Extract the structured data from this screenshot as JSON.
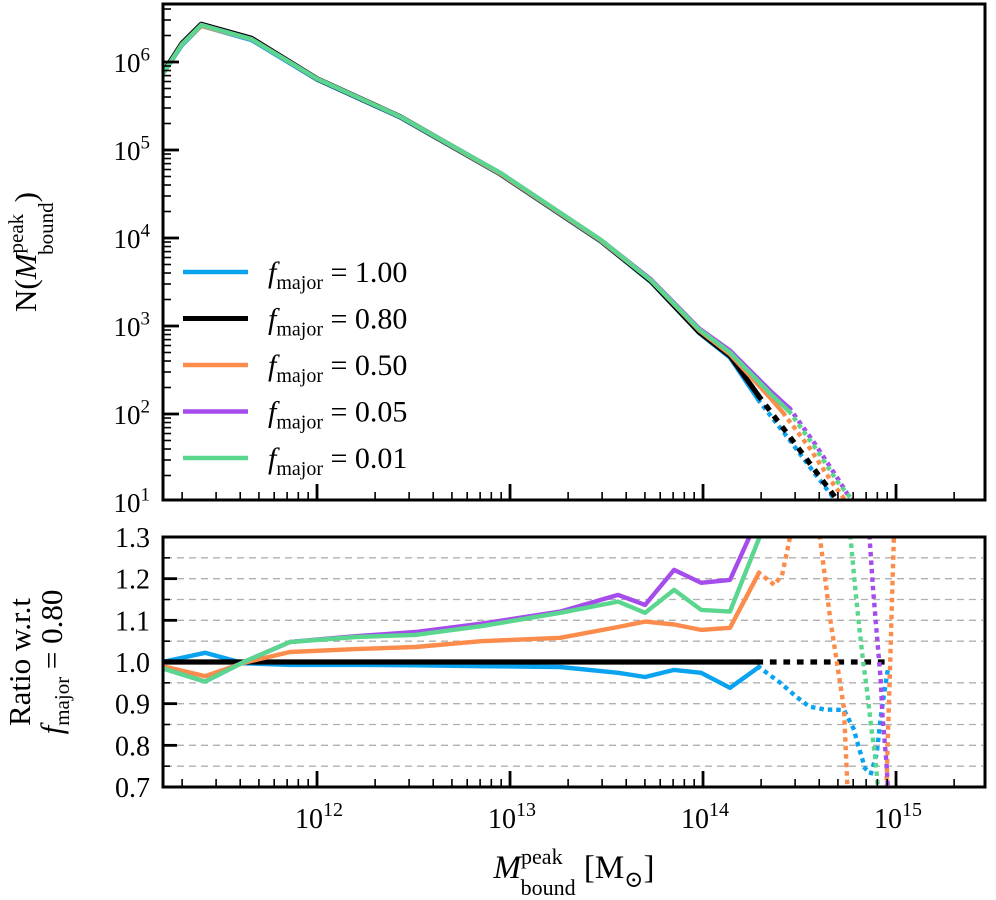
{
  "colors": {
    "blue": "#0aa3f0",
    "black": "#000000",
    "orange": "#fb8c4c",
    "purple": "#a54cec",
    "green": "#5bd68f",
    "grid": "#b0b0b0"
  },
  "labels": {
    "top_y": {
      "pre": "N(",
      "var": "M",
      "sup": "peak",
      "sub": "bound",
      "post": ")"
    },
    "bottom_y_line1": "Ratio w.r.t",
    "bottom_y_line2": {
      "var": "f",
      "sub": "major",
      "rest": " = 0.80"
    },
    "x": {
      "var": "M",
      "sup": "peak",
      "sub": "bound",
      "unit_pre": " [M",
      "unit_sub": "⊙",
      "unit_post": "]"
    }
  },
  "legend": {
    "items": [
      {
        "id": "fmajor-1.00",
        "var": "f",
        "sub": "major",
        "rest": " = 1.00",
        "color": "#0aa3f0"
      },
      {
        "id": "fmajor-0.80",
        "var": "f",
        "sub": "major",
        "rest": " = 0.80",
        "color": "#000000"
      },
      {
        "id": "fmajor-0.50",
        "var": "f",
        "sub": "major",
        "rest": " = 0.50",
        "color": "#fb8c4c"
      },
      {
        "id": "fmajor-0.05",
        "var": "f",
        "sub": "major",
        "rest": " = 0.05",
        "color": "#a54cec"
      },
      {
        "id": "fmajor-0.01",
        "var": "f",
        "sub": "major",
        "rest": " = 0.01",
        "color": "#5bd68f"
      }
    ]
  },
  "chart_data": [
    {
      "type": "line",
      "panel": "top",
      "title": "",
      "xlabel": "M_bound^peak [Msun]",
      "ylabel": "N(M_bound^peak)",
      "xscale": "log",
      "yscale": "log",
      "xlim_log10": [
        11.202,
        15.461
      ],
      "ylim_log10": [
        1.02,
        6.66
      ],
      "xticks_log10": [
        12,
        13,
        14,
        15
      ],
      "yticks_log10": [
        1,
        2,
        3,
        4,
        5,
        6
      ],
      "grid": false,
      "legend_position": "center-left-inside",
      "note": "All five halo mass functions nearly overlap; lines become dotted above ~2e14 Msun. Points are [log10(M/Msun), log10(N)].",
      "series": [
        {
          "id": "fmajor-1.00",
          "name": "f_major = 1.00",
          "color": "#0aa3f0",
          "solid": [
            [
              11.2,
              5.86
            ],
            [
              11.3,
              6.19
            ],
            [
              11.4,
              6.41
            ],
            [
              11.66,
              6.25
            ],
            [
              12.0,
              5.8
            ],
            [
              12.43,
              5.37
            ],
            [
              12.95,
              4.72
            ],
            [
              13.47,
              3.96
            ],
            [
              13.73,
              3.5
            ],
            [
              13.98,
              2.92
            ],
            [
              14.14,
              2.64
            ],
            [
              14.29,
              2.15
            ]
          ],
          "dotted": [
            [
              [
                14.29,
                2.15
              ],
              [
                14.45,
                1.7
              ],
              [
                14.58,
                1.32
              ],
              [
                14.7,
                0.98
              ]
            ]
          ]
        },
        {
          "id": "fmajor-0.80",
          "name": "f_major = 0.80",
          "color": "#000000",
          "solid": [
            [
              11.2,
              5.87
            ],
            [
              11.3,
              6.21
            ],
            [
              11.4,
              6.43
            ],
            [
              11.66,
              6.27
            ],
            [
              12.0,
              5.81
            ],
            [
              12.43,
              5.38
            ],
            [
              12.95,
              4.73
            ],
            [
              13.47,
              3.97
            ],
            [
              13.73,
              3.51
            ],
            [
              13.98,
              2.93
            ],
            [
              14.14,
              2.66
            ],
            [
              14.29,
              2.2
            ]
          ],
          "dotted": [
            [
              [
                14.29,
                2.2
              ],
              [
                14.45,
                1.74
              ],
              [
                14.58,
                1.36
              ],
              [
                14.71,
                0.98
              ]
            ]
          ]
        },
        {
          "id": "fmajor-0.50",
          "name": "f_major = 0.50",
          "color": "#fb8c4c",
          "solid": [
            [
              11.2,
              5.86
            ],
            [
              11.3,
              6.2
            ],
            [
              11.4,
              6.41
            ],
            [
              11.66,
              6.26
            ],
            [
              12.0,
              5.81
            ],
            [
              12.43,
              5.38
            ],
            [
              12.95,
              4.73
            ],
            [
              13.47,
              3.97
            ],
            [
              13.73,
              3.52
            ],
            [
              13.98,
              2.95
            ],
            [
              14.14,
              2.68
            ],
            [
              14.35,
              2.18
            ],
            [
              14.42,
              2.0
            ]
          ],
          "dotted": [
            [
              [
                14.42,
                2.0
              ],
              [
                14.55,
                1.62
              ],
              [
                14.66,
                1.25
              ],
              [
                14.75,
                0.98
              ]
            ]
          ]
        },
        {
          "id": "fmajor-0.05",
          "name": "f_major = 0.05",
          "color": "#a54cec",
          "solid": [
            [
              11.2,
              5.86
            ],
            [
              11.3,
              6.2
            ],
            [
              11.4,
              6.42
            ],
            [
              11.66,
              6.26
            ],
            [
              12.0,
              5.81
            ],
            [
              12.43,
              5.38
            ],
            [
              12.95,
              4.74
            ],
            [
              13.47,
              3.98
            ],
            [
              13.73,
              3.53
            ],
            [
              13.98,
              2.97
            ],
            [
              14.14,
              2.72
            ],
            [
              14.35,
              2.26
            ],
            [
              14.45,
              2.06
            ]
          ],
          "dotted": [
            [
              [
                14.45,
                2.06
              ],
              [
                14.58,
                1.66
              ],
              [
                14.7,
                1.26
              ],
              [
                14.78,
                0.98
              ]
            ]
          ]
        },
        {
          "id": "fmajor-0.01",
          "name": "f_major = 0.01",
          "color": "#5bd68f",
          "solid": [
            [
              11.2,
              5.86
            ],
            [
              11.3,
              6.2
            ],
            [
              11.4,
              6.42
            ],
            [
              11.66,
              6.26
            ],
            [
              12.0,
              5.81
            ],
            [
              12.43,
              5.38
            ],
            [
              12.95,
              4.74
            ],
            [
              13.47,
              3.98
            ],
            [
              13.73,
              3.52
            ],
            [
              13.98,
              2.96
            ],
            [
              14.14,
              2.7
            ],
            [
              14.35,
              2.23
            ],
            [
              14.45,
              2.02
            ]
          ],
          "dotted": [
            [
              [
                14.45,
                2.02
              ],
              [
                14.58,
                1.62
              ],
              [
                14.7,
                1.22
              ],
              [
                14.79,
                0.98
              ]
            ]
          ]
        }
      ]
    },
    {
      "type": "line",
      "panel": "bottom",
      "title": "",
      "xlabel": "M_bound^peak [Msun]",
      "ylabel": "Ratio w.r.t f_major = 0.80",
      "xscale": "log",
      "yscale": "linear",
      "xlim_log10": [
        11.202,
        15.461
      ],
      "ylim": [
        0.7,
        1.3
      ],
      "xticks_log10": [
        12,
        13,
        14,
        15
      ],
      "yticks": [
        0.7,
        0.8,
        0.9,
        1.0,
        1.1,
        1.2,
        1.3
      ],
      "grid": true,
      "grid_y": [
        0.75,
        0.8,
        0.85,
        0.9,
        0.95,
        1.05,
        1.1,
        1.15,
        1.2,
        1.25
      ],
      "note": "Ratio of each mass function to the f_major = 0.80 case. Points are [log10(M/Msun), ratio].",
      "series": [
        {
          "id": "fmajor-1.00",
          "name": "f_major = 1.00",
          "color": "#0aa3f0",
          "solid": [
            [
              11.2,
              1.0
            ],
            [
              11.42,
              1.022
            ],
            [
              11.62,
              0.997
            ],
            [
              11.86,
              0.993
            ],
            [
              12.2,
              0.993
            ],
            [
              12.51,
              0.992
            ],
            [
              12.85,
              0.99
            ],
            [
              13.26,
              0.988
            ],
            [
              13.56,
              0.974
            ],
            [
              13.7,
              0.964
            ],
            [
              13.85,
              0.981
            ],
            [
              13.99,
              0.974
            ],
            [
              14.14,
              0.938
            ],
            [
              14.29,
              0.988
            ]
          ],
          "dotted": [
            [
              [
                14.29,
                0.988
              ],
              [
                14.4,
                0.95
              ],
              [
                14.48,
                0.918
              ],
              [
                14.55,
                0.893
              ],
              [
                14.63,
                0.886
              ],
              [
                14.73,
                0.885
              ],
              [
                14.78,
                0.84
              ],
              [
                14.81,
                0.79
              ],
              [
                14.84,
                0.745
              ],
              [
                14.87,
                0.732
              ],
              [
                14.9,
                0.78
              ],
              [
                14.92,
                0.865
              ],
              [
                14.94,
                0.93
              ],
              [
                14.96,
                0.988
              ]
            ]
          ]
        },
        {
          "id": "fmajor-0.80",
          "name": "f_major = 0.80",
          "color": "#000000",
          "solid": [
            [
              11.2,
              1.0
            ],
            [
              14.29,
              1.0
            ]
          ],
          "dotted": [
            [
              [
                14.29,
                1.0
              ],
              [
                14.98,
                1.0
              ]
            ]
          ]
        },
        {
          "id": "fmajor-0.50",
          "name": "f_major = 0.50",
          "color": "#fb8c4c",
          "solid": [
            [
              11.2,
              0.99
            ],
            [
              11.42,
              0.966
            ],
            [
              11.62,
              0.998
            ],
            [
              11.86,
              1.024
            ],
            [
              12.2,
              1.031
            ],
            [
              12.51,
              1.036
            ],
            [
              12.85,
              1.05
            ],
            [
              13.26,
              1.058
            ],
            [
              13.56,
              1.084
            ],
            [
              13.7,
              1.097
            ],
            [
              13.85,
              1.09
            ],
            [
              13.99,
              1.077
            ],
            [
              14.14,
              1.082
            ],
            [
              14.29,
              1.214
            ]
          ],
          "dotted": [
            [
              [
                14.29,
                1.214
              ],
              [
                14.37,
                1.185
              ],
              [
                14.41,
                1.21
              ],
              [
                14.46,
                1.32
              ]
            ],
            [
              [
                14.6,
                1.32
              ],
              [
                14.66,
                1.1
              ],
              [
                14.7,
                0.98
              ],
              [
                14.73,
                0.89
              ],
              [
                14.75,
                0.68
              ]
            ],
            [
              [
                14.95,
                0.7
              ],
              [
                14.97,
                1.0
              ],
              [
                14.99,
                1.32
              ]
            ]
          ]
        },
        {
          "id": "fmajor-0.05",
          "name": "f_major = 0.05",
          "color": "#a54cec",
          "solid": [
            [
              11.2,
              0.985
            ],
            [
              11.42,
              0.953
            ],
            [
              11.62,
              1.0
            ],
            [
              11.86,
              1.048
            ],
            [
              12.2,
              1.062
            ],
            [
              12.51,
              1.072
            ],
            [
              12.85,
              1.092
            ],
            [
              13.26,
              1.121
            ],
            [
              13.56,
              1.161
            ],
            [
              13.7,
              1.137
            ],
            [
              13.85,
              1.221
            ],
            [
              13.99,
              1.19
            ],
            [
              14.14,
              1.197
            ],
            [
              14.27,
              1.33
            ]
          ],
          "dotted": [
            [
              [
                14.86,
                1.32
              ],
              [
                14.88,
                1.18
              ],
              [
                14.9,
                1.07
              ],
              [
                14.92,
                0.96
              ],
              [
                14.93,
                0.87
              ],
              [
                14.95,
                0.76
              ],
              [
                14.96,
                0.68
              ]
            ]
          ]
        },
        {
          "id": "fmajor-0.01",
          "name": "f_major = 0.01",
          "color": "#5bd68f",
          "solid": [
            [
              11.2,
              0.985
            ],
            [
              11.42,
              0.953
            ],
            [
              11.62,
              1.0
            ],
            [
              11.86,
              1.048
            ],
            [
              12.2,
              1.06
            ],
            [
              12.51,
              1.065
            ],
            [
              12.85,
              1.086
            ],
            [
              13.26,
              1.118
            ],
            [
              13.56,
              1.145
            ],
            [
              13.7,
              1.118
            ],
            [
              13.85,
              1.173
            ],
            [
              13.99,
              1.125
            ],
            [
              14.14,
              1.121
            ],
            [
              14.31,
              1.32
            ]
          ],
          "dotted": [
            [
              [
                14.76,
                1.32
              ],
              [
                14.79,
                1.17
              ],
              [
                14.81,
                1.08
              ],
              [
                14.83,
                1.0
              ],
              [
                14.85,
                0.93
              ],
              [
                14.87,
                0.85
              ],
              [
                14.89,
                0.78
              ],
              [
                14.91,
                0.68
              ]
            ]
          ]
        }
      ]
    }
  ]
}
